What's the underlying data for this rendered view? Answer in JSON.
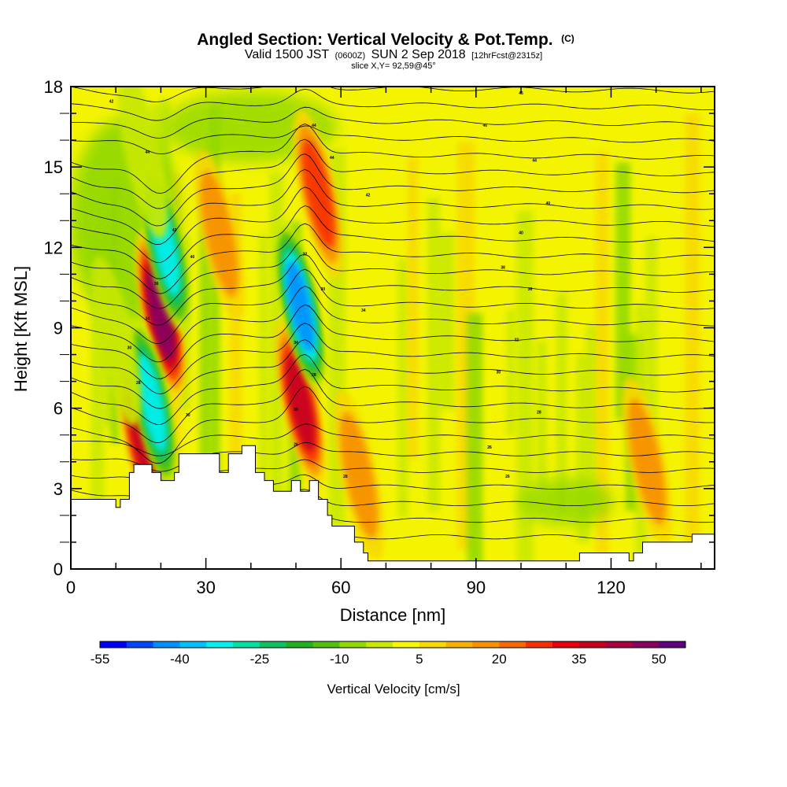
{
  "title": {
    "main": "Angled Section: Vertical Velocity & Pot.Temp.",
    "unit_tag": "(C)",
    "valid_prefix": "Valid 1500 JST",
    "valid_utc": "(0600Z)",
    "valid_date": "SUN 2 Sep 2018",
    "forecast_tag": "[12hrFcst@2315z]",
    "slice": "slice X,Y= 92,59@45°"
  },
  "colorbar": {
    "title": "Vertical Velocity [cm/s]",
    "tick_labels": [
      "-55",
      "-40",
      "-25",
      "-10",
      "5",
      "20",
      "35",
      "50"
    ],
    "colors": [
      "#0000ff",
      "#0048ff",
      "#0090ff",
      "#00c0ff",
      "#00f0f0",
      "#00e0a0",
      "#10c060",
      "#20b020",
      "#50c010",
      "#90d800",
      "#c8e800",
      "#f8f800",
      "#f8d800",
      "#f8b000",
      "#f89000",
      "#f86800",
      "#f83000",
      "#e80010",
      "#c80020",
      "#a80040",
      "#880060",
      "#600080"
    ]
  },
  "chart_data": {
    "type": "heatmap",
    "title": "Angled Section: Vertical Velocity & Pot.Temp.",
    "xlabel": "Distance [nm]",
    "ylabel": "Height [Kft MSL]",
    "xlim": [
      0,
      143
    ],
    "ylim": [
      0,
      18
    ],
    "x_ticks": [
      0,
      30,
      60,
      90,
      120
    ],
    "y_ticks": [
      0,
      3,
      6,
      9,
      12,
      15,
      18
    ],
    "colorbar_range": [
      -55,
      60
    ],
    "colorbar_step": 5,
    "terrain": [
      [
        0,
        2.6
      ],
      [
        10,
        2.6
      ],
      [
        10,
        2.3
      ],
      [
        11,
        2.3
      ],
      [
        11,
        2.6
      ],
      [
        13,
        2.6
      ],
      [
        13,
        3.6
      ],
      [
        14,
        3.6
      ],
      [
        14,
        3.9
      ],
      [
        18,
        3.9
      ],
      [
        18,
        3.6
      ],
      [
        20,
        3.6
      ],
      [
        20,
        3.3
      ],
      [
        23,
        3.3
      ],
      [
        23,
        3.6
      ],
      [
        24,
        3.6
      ],
      [
        24,
        4.3
      ],
      [
        27,
        4.3
      ],
      [
        27,
        4.3
      ],
      [
        33,
        4.3
      ],
      [
        33,
        3.6
      ],
      [
        35,
        3.6
      ],
      [
        35,
        4.3
      ],
      [
        38,
        4.3
      ],
      [
        38,
        4.6
      ],
      [
        41,
        4.6
      ],
      [
        41,
        3.6
      ],
      [
        43,
        3.6
      ],
      [
        43,
        3.3
      ],
      [
        45,
        3.3
      ],
      [
        45,
        2.9
      ],
      [
        49,
        2.9
      ],
      [
        49,
        3.3
      ],
      [
        51,
        3.3
      ],
      [
        51,
        2.9
      ],
      [
        53,
        2.9
      ],
      [
        53,
        3.3
      ],
      [
        55,
        3.3
      ],
      [
        55,
        2.6
      ],
      [
        57,
        2.6
      ],
      [
        57,
        2.0
      ],
      [
        58,
        2.0
      ],
      [
        58,
        1.6
      ],
      [
        63,
        1.6
      ],
      [
        63,
        1.0
      ],
      [
        65,
        1.0
      ],
      [
        65,
        0.6
      ],
      [
        66,
        0.6
      ],
      [
        66,
        0.3
      ],
      [
        113,
        0.3
      ],
      [
        113,
        0.6
      ],
      [
        124,
        0.6
      ],
      [
        124,
        0.3
      ],
      [
        125,
        0.3
      ],
      [
        125,
        0.6
      ],
      [
        127,
        0.6
      ],
      [
        127,
        1.0
      ],
      [
        138,
        1.0
      ],
      [
        138,
        1.3
      ],
      [
        143,
        1.3
      ]
    ],
    "updrafts": [
      {
        "x": 20,
        "z": 9.5,
        "value": 45
      },
      {
        "x": 16,
        "z": 4.8,
        "value": 40
      },
      {
        "x": 33,
        "z": 12.5,
        "value": 20
      },
      {
        "x": 51,
        "z": 6.2,
        "value": 40
      },
      {
        "x": 55,
        "z": 14.0,
        "value": 30
      },
      {
        "x": 64,
        "z": 3.5,
        "value": 20
      },
      {
        "x": 128,
        "z": 4.0,
        "value": 20
      }
    ],
    "downdrafts": [
      {
        "x": 21,
        "z": 12.0,
        "value": -35
      },
      {
        "x": 18,
        "z": 6.2,
        "value": -35
      },
      {
        "x": 51,
        "z": 9.8,
        "value": -45
      },
      {
        "x": 16,
        "z": 15.5,
        "value": -10
      },
      {
        "x": 10,
        "z": 8.5,
        "value": -10
      }
    ],
    "contour_labels": [
      {
        "x": 9,
        "z": 17.4,
        "text": "42"
      },
      {
        "x": 17,
        "z": 15.5,
        "text": "44"
      },
      {
        "x": 54,
        "z": 16.5,
        "text": "44"
      },
      {
        "x": 58,
        "z": 15.3,
        "text": "44"
      },
      {
        "x": 100,
        "z": 17.7,
        "text": "46"
      },
      {
        "x": 92,
        "z": 16.5,
        "text": "46"
      },
      {
        "x": 103,
        "z": 15.2,
        "text": "44"
      },
      {
        "x": 66,
        "z": 13.9,
        "text": "42"
      },
      {
        "x": 106,
        "z": 13.6,
        "text": "40"
      },
      {
        "x": 23,
        "z": 12.6,
        "text": "42"
      },
      {
        "x": 100,
        "z": 12.5,
        "text": "40"
      },
      {
        "x": 27,
        "z": 11.6,
        "text": "40"
      },
      {
        "x": 52,
        "z": 11.7,
        "text": "32"
      },
      {
        "x": 96,
        "z": 11.2,
        "text": "38"
      },
      {
        "x": 19,
        "z": 10.6,
        "text": "36"
      },
      {
        "x": 56,
        "z": 10.4,
        "text": "30"
      },
      {
        "x": 102,
        "z": 10.4,
        "text": "36"
      },
      {
        "x": 17,
        "z": 9.3,
        "text": "34"
      },
      {
        "x": 65,
        "z": 9.6,
        "text": "34"
      },
      {
        "x": 50,
        "z": 8.4,
        "text": "34"
      },
      {
        "x": 99,
        "z": 8.5,
        "text": "32"
      },
      {
        "x": 13,
        "z": 8.2,
        "text": "30"
      },
      {
        "x": 54,
        "z": 7.2,
        "text": "28"
      },
      {
        "x": 95,
        "z": 7.3,
        "text": "30"
      },
      {
        "x": 15,
        "z": 6.9,
        "text": "28"
      },
      {
        "x": 50,
        "z": 5.9,
        "text": "30"
      },
      {
        "x": 26,
        "z": 5.7,
        "text": "30"
      },
      {
        "x": 104,
        "z": 5.8,
        "text": "28"
      },
      {
        "x": 50,
        "z": 4.6,
        "text": "26"
      },
      {
        "x": 93,
        "z": 4.5,
        "text": "26"
      },
      {
        "x": 61,
        "z": 3.4,
        "text": "28"
      },
      {
        "x": 97,
        "z": 3.4,
        "text": "26"
      }
    ]
  }
}
